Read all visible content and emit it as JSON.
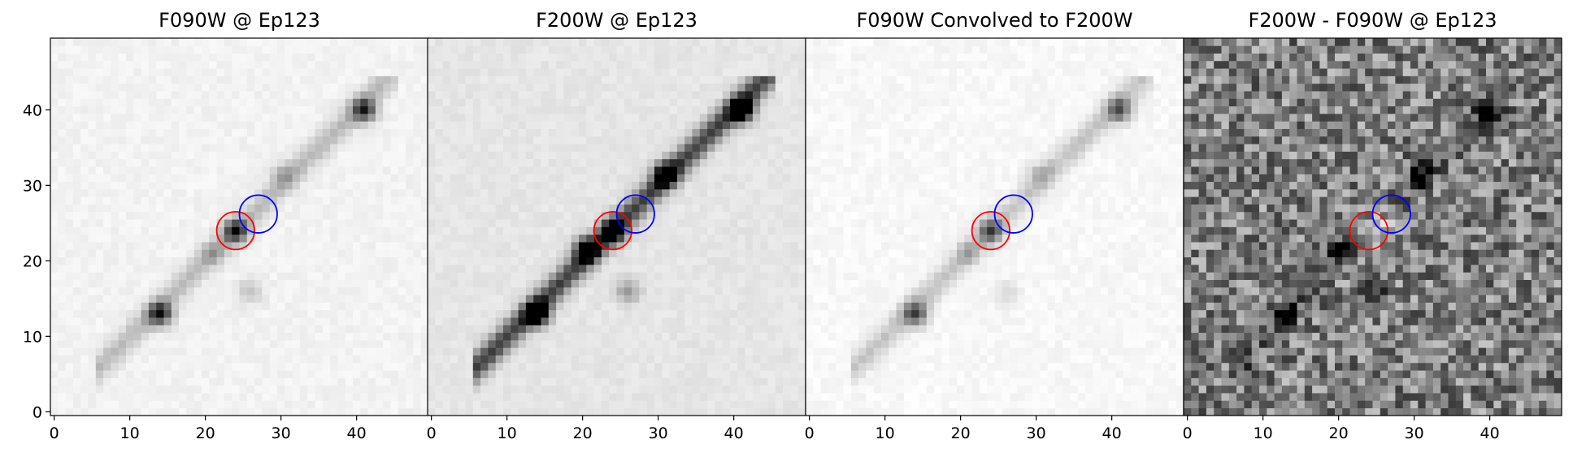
{
  "chart_data": [
    {
      "type": "heatmap",
      "title": "F090W @ Ep123",
      "xlim": [
        -0.5,
        49.5
      ],
      "ylim": [
        -0.5,
        49.5
      ],
      "xticks": [
        0,
        10,
        20,
        30,
        40
      ],
      "yticks": [
        0,
        10,
        20,
        30,
        40
      ],
      "colormap": "gray_r",
      "background_level": 0.05,
      "streak_level": 0.22,
      "sources": [
        {
          "x": 14,
          "y": 13,
          "level": 0.75
        },
        {
          "x": 24,
          "y": 24,
          "level": 0.7
        },
        {
          "x": 41,
          "y": 40,
          "level": 0.7
        },
        {
          "x": 30.5,
          "y": 31.5,
          "level": 0.2
        },
        {
          "x": 21,
          "y": 21,
          "level": 0.2
        },
        {
          "x": 26,
          "y": 16,
          "level": 0.2
        }
      ],
      "circles": [
        {
          "x": 24,
          "y": 24,
          "r": 2.5,
          "color": "#ff0000"
        },
        {
          "x": 27,
          "y": 26.2,
          "r": 2.5,
          "color": "#0000ff"
        }
      ]
    },
    {
      "type": "heatmap",
      "title": "F200W @ Ep123",
      "xlim": [
        -0.5,
        49.5
      ],
      "ylim": [
        -0.5,
        49.5
      ],
      "xticks": [
        0,
        10,
        20,
        30,
        40
      ],
      "yticks": [],
      "colormap": "gray_r",
      "background_level": 0.1,
      "streak_level": 0.65,
      "sources": [
        {
          "x": 14,
          "y": 13,
          "level": 1.0
        },
        {
          "x": 41,
          "y": 40,
          "level": 1.0
        },
        {
          "x": 31,
          "y": 31.5,
          "level": 0.85
        },
        {
          "x": 20.5,
          "y": 21.5,
          "level": 0.9
        },
        {
          "x": 24,
          "y": 24,
          "level": 0.85
        },
        {
          "x": 26,
          "y": 16,
          "level": 0.3
        }
      ],
      "circles": [
        {
          "x": 24,
          "y": 24,
          "r": 2.5,
          "color": "#ff0000"
        },
        {
          "x": 27,
          "y": 26.2,
          "r": 2.5,
          "color": "#0000ff"
        }
      ]
    },
    {
      "type": "heatmap",
      "title": "F090W Convolved to F200W",
      "xlim": [
        -0.5,
        49.5
      ],
      "ylim": [
        -0.5,
        49.5
      ],
      "xticks": [
        0,
        10,
        20,
        30,
        40
      ],
      "yticks": [],
      "colormap": "gray_r",
      "background_level": 0.03,
      "streak_level": 0.2,
      "sources": [
        {
          "x": 14,
          "y": 13,
          "level": 0.6
        },
        {
          "x": 24,
          "y": 24,
          "level": 0.55
        },
        {
          "x": 41,
          "y": 40,
          "level": 0.55
        },
        {
          "x": 30.5,
          "y": 31.5,
          "level": 0.18
        },
        {
          "x": 21,
          "y": 21,
          "level": 0.18
        },
        {
          "x": 26,
          "y": 16,
          "level": 0.12
        }
      ],
      "circles": [
        {
          "x": 24,
          "y": 24,
          "r": 2.5,
          "color": "#ff0000"
        },
        {
          "x": 27,
          "y": 26.2,
          "r": 2.5,
          "color": "#0000ff"
        }
      ]
    },
    {
      "type": "heatmap",
      "title": "F200W - F090W @ Ep123",
      "xlim": [
        -0.5,
        49.5
      ],
      "ylim": [
        -0.5,
        49.5
      ],
      "xticks": [
        0,
        10,
        20,
        30,
        40
      ],
      "yticks": [],
      "colormap": "gray_r",
      "background_level": 0.5,
      "streak_level": 0.1,
      "sources": [
        {
          "x": 40,
          "y": 40,
          "level": 0.55
        },
        {
          "x": 31,
          "y": 31.5,
          "level": 0.5
        },
        {
          "x": 20.5,
          "y": 21.5,
          "level": 0.5
        },
        {
          "x": 13,
          "y": 13,
          "level": 0.45
        },
        {
          "x": 25,
          "y": 15.5,
          "level": 0.4
        },
        {
          "x": 8,
          "y": 5,
          "level": 0.25
        },
        {
          "x": 24,
          "y": 24,
          "level": -0.45
        },
        {
          "x": 27,
          "y": 26,
          "level": -0.35
        }
      ],
      "circles": [
        {
          "x": 24,
          "y": 24,
          "r": 2.5,
          "color": "#ff0000"
        },
        {
          "x": 27,
          "y": 26.2,
          "r": 2.5,
          "color": "#0000ff"
        }
      ]
    }
  ]
}
